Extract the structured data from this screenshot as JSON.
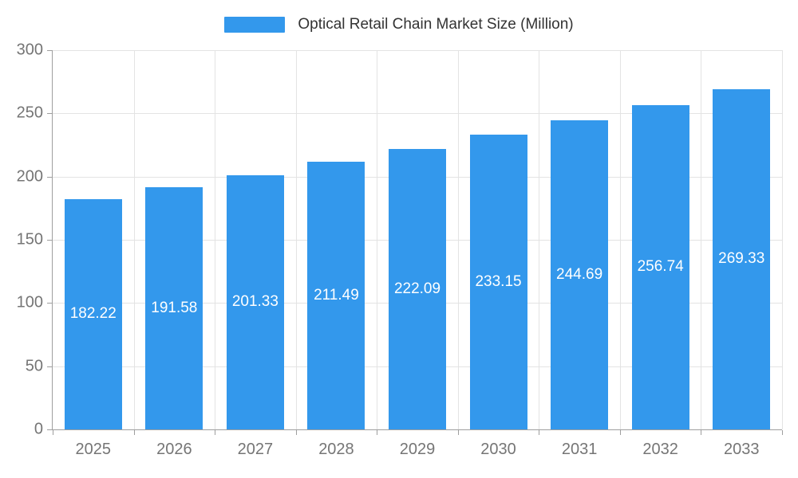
{
  "chart_data": {
    "type": "bar",
    "title": "Optical Retail Chain Market Size (Million)",
    "categories": [
      "2025",
      "2026",
      "2027",
      "2028",
      "2029",
      "2030",
      "2031",
      "2032",
      "2033"
    ],
    "values": [
      182.22,
      191.58,
      201.33,
      211.49,
      222.09,
      233.15,
      244.69,
      256.74,
      269.33
    ],
    "value_labels": [
      "182.22",
      "191.58",
      "201.33",
      "211.49",
      "222.09",
      "233.15",
      "244.69",
      "256.74",
      "269.33"
    ],
    "xlabel": "",
    "ylabel": "",
    "ylim": [
      0,
      300
    ],
    "yticks": [
      0,
      50,
      100,
      150,
      200,
      250,
      300
    ],
    "grid": true,
    "legend_position": "top",
    "bar_color": "#3398EC",
    "value_label_color": "#FFFFFF",
    "axis_text_color": "#757575",
    "legend_text_color": "#333333",
    "grid_color": "#E3E3E3",
    "axis_line_color": "#9E9E9E",
    "background_color": "#FFFFFF"
  }
}
